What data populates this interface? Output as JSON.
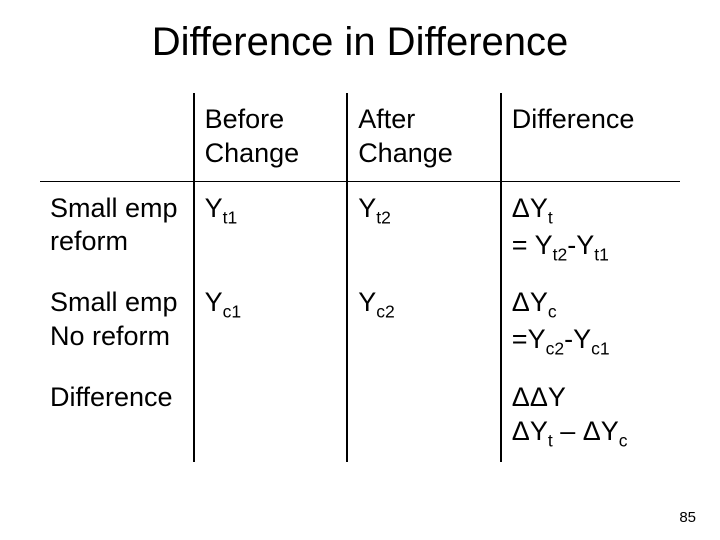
{
  "title": "Difference in Difference",
  "table": {
    "columns": [
      "",
      "Before Change",
      "After Change",
      "Difference"
    ],
    "col_widths_pct": [
      24,
      24,
      24,
      28
    ],
    "rows": [
      {
        "label": "Small emp reform",
        "before": {
          "base": "Y",
          "sub": "t1"
        },
        "after": {
          "base": "Y",
          "sub": "t2"
        },
        "diff_lines": [
          [
            {
              "text": "Δ"
            },
            {
              "base": "Y",
              "sub": "t"
            }
          ],
          [
            {
              "text": "= "
            },
            {
              "base": "Y",
              "sub": "t2"
            },
            {
              "text": "-"
            },
            {
              "base": "Y",
              "sub": "t1"
            }
          ]
        ]
      },
      {
        "label": "Small emp No reform",
        "before": {
          "base": "Y",
          "sub": "c1"
        },
        "after": {
          "base": "Y",
          "sub": "c2"
        },
        "diff_lines": [
          [
            {
              "text": "Δ"
            },
            {
              "base": "Y",
              "sub": "c"
            }
          ],
          [
            {
              "text": "="
            },
            {
              "base": "Y",
              "sub": "c2"
            },
            {
              "text": "-"
            },
            {
              "base": "Y",
              "sub": "c1"
            }
          ]
        ]
      },
      {
        "label": "Difference",
        "before": null,
        "after": null,
        "diff_lines": [
          [
            {
              "text": "ΔΔY"
            }
          ],
          [
            {
              "text": "Δ"
            },
            {
              "base": "Y",
              "sub": "t"
            },
            {
              "text": " – Δ"
            },
            {
              "base": "Y",
              "sub": "c"
            }
          ]
        ]
      }
    ],
    "border_color": "#000000",
    "background_color": "#ffffff",
    "font_color": "#000000",
    "header_fontsize": 27,
    "cell_fontsize": 27
  },
  "page_number": "85"
}
